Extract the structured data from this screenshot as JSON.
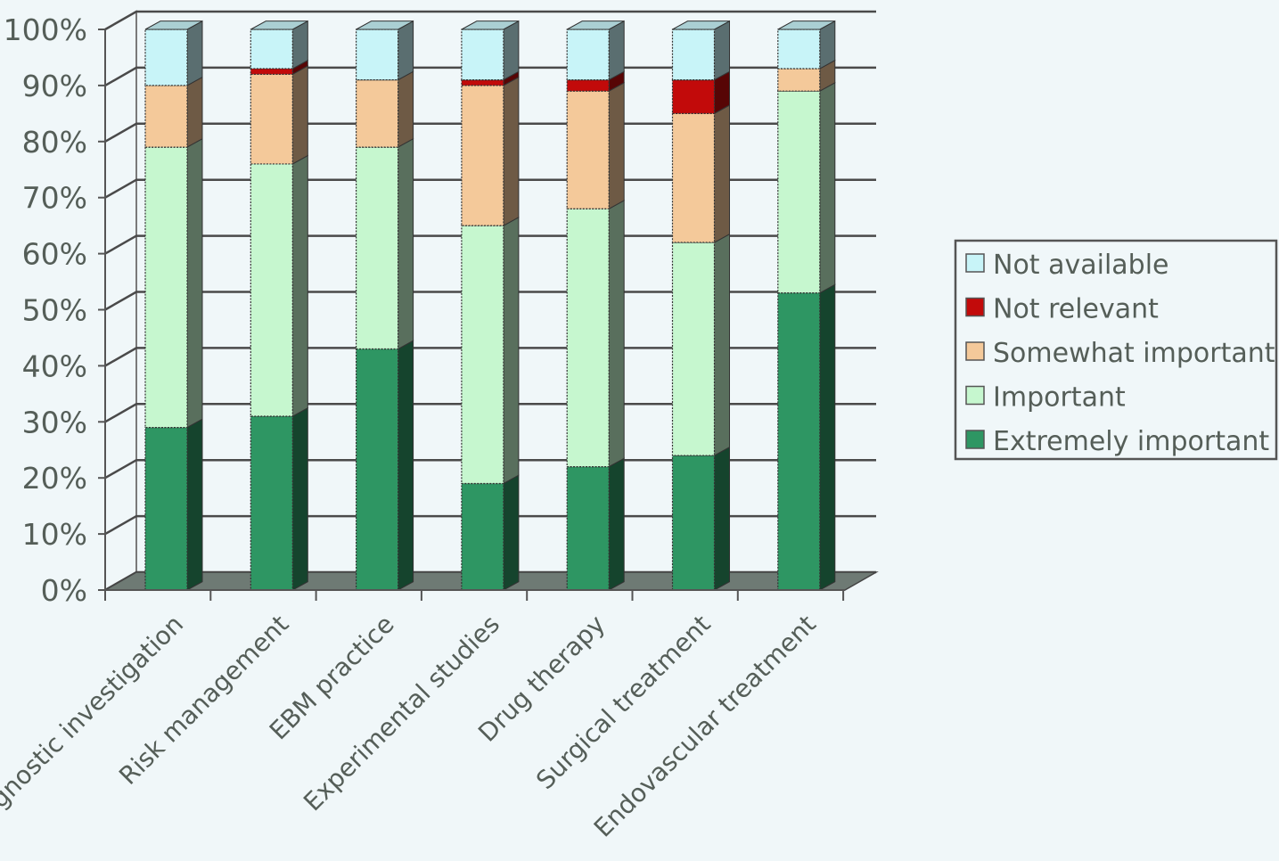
{
  "chart_data": {
    "type": "bar",
    "stacked": true,
    "three_d": true,
    "categories": [
      "Diagnostic investigation",
      "Risk management",
      "EBM practice",
      "Experimental studies",
      "Drug therapy",
      "Surgical treatment",
      "Endovascular treatment"
    ],
    "series": [
      {
        "name": "Extremely important",
        "color": "#2e9663",
        "values": [
          29,
          31,
          43,
          19,
          22,
          24,
          53
        ]
      },
      {
        "name": "Important",
        "color": "#c6f7cf",
        "values": [
          50,
          45,
          36,
          46,
          46,
          38,
          36
        ]
      },
      {
        "name": "Somewhat important",
        "color": "#f4c99a",
        "values": [
          11,
          16,
          12,
          25,
          21,
          23,
          4
        ]
      },
      {
        "name": "Not relevant",
        "color": "#c20a0a",
        "values": [
          0,
          1,
          0,
          1,
          2,
          6,
          0
        ]
      },
      {
        "name": "Not available",
        "color": "#c8f4f8",
        "values": [
          10,
          7,
          9,
          9,
          9,
          9,
          7
        ]
      }
    ],
    "yticks": [
      "0%",
      "10%",
      "20%",
      "30%",
      "40%",
      "50%",
      "60%",
      "70%",
      "80%",
      "90%",
      "100%"
    ],
    "ylim": [
      0,
      100
    ],
    "grid": true,
    "legend_position": "right"
  }
}
